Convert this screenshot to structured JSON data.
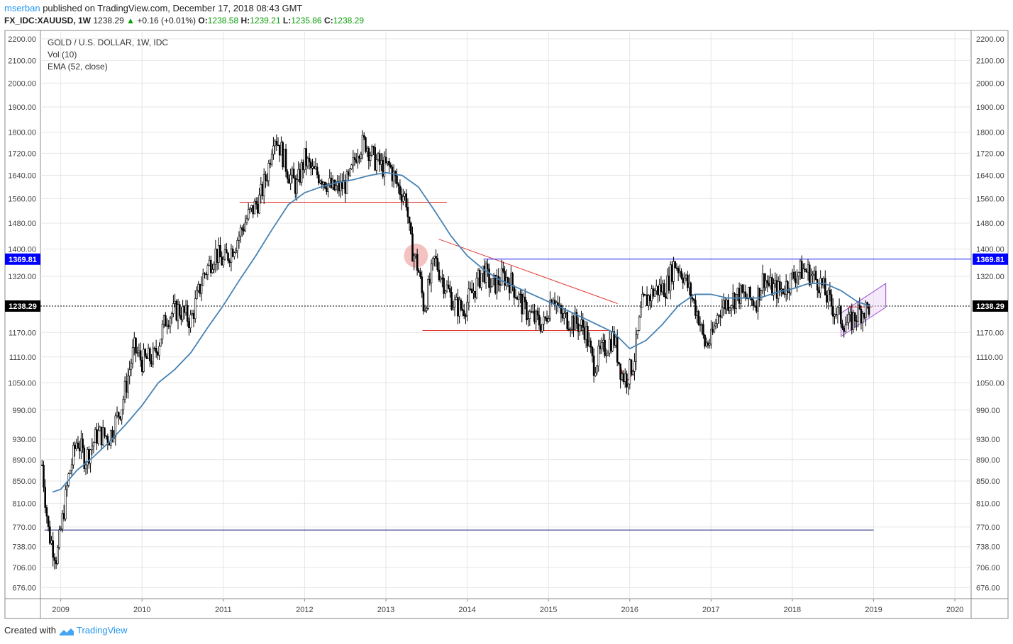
{
  "header": {
    "publisher": "mserban",
    "published_text": "published on TradingView.com, December 17, 2018 08:43 GMT",
    "symbol": "FX_IDC:XAUUSD, 1W",
    "last": "1238.29",
    "change": "+0.16 (+0.01%)",
    "o_label": "O:",
    "o_value": "1238.58",
    "h_label": "H:",
    "h_value": "1239.21",
    "l_label": "L:",
    "l_value": "1235.86",
    "c_label": "C:",
    "c_value": "1238.29"
  },
  "legend": {
    "title": "GOLD / U.S. DOLLAR, 1W, IDC",
    "vol": "Vol (10)",
    "ema": "EMA (52, close)"
  },
  "footer": {
    "created_with": "Created with",
    "brand": "TradingView"
  },
  "colors": {
    "candle": "#000000",
    "ema": "#4682b4",
    "red_line": "#e53935",
    "blue_line": "#1a1aff",
    "channel": "#9c4fd1",
    "current_price_bg": "#000000",
    "marker_label_bg": "#0000ff"
  },
  "chart_data": {
    "type": "line",
    "title": "GOLD / U.S. DOLLAR, 1W, IDC",
    "y_scale": "log",
    "ylim": [
      660,
      2240
    ],
    "xlim": [
      2008.75,
      2020.2
    ],
    "y_ticks": [
      2200,
      2100,
      2000,
      1900,
      1800,
      1720,
      1640,
      1560,
      1480,
      1400,
      1320,
      1170,
      1110,
      1050,
      990,
      930,
      890,
      850,
      810,
      770,
      738,
      706,
      676
    ],
    "x_ticks": [
      "2009",
      "2010",
      "2011",
      "2012",
      "2013",
      "2014",
      "2015",
      "2016",
      "2017",
      "2018",
      "2019",
      "2020"
    ],
    "price_labels": {
      "current": "1238.29",
      "marker": "1369.81"
    },
    "series": [
      {
        "name": "XAUUSD close",
        "x": [
          2008.77,
          2008.85,
          2008.95,
          2009.1,
          2009.2,
          2009.3,
          2009.45,
          2009.6,
          2009.75,
          2009.9,
          2010.0,
          2010.15,
          2010.3,
          2010.45,
          2010.6,
          2010.75,
          2010.9,
          2011.0,
          2011.15,
          2011.3,
          2011.45,
          2011.55,
          2011.62,
          2011.7,
          2011.8,
          2011.9,
          2012.0,
          2012.1,
          2012.2,
          2012.35,
          2012.45,
          2012.55,
          2012.65,
          2012.75,
          2012.85,
          2012.95,
          2013.05,
          2013.15,
          2013.25,
          2013.3,
          2013.4,
          2013.47,
          2013.6,
          2013.7,
          2013.85,
          2013.95,
          2014.1,
          2014.2,
          2014.3,
          2014.45,
          2014.55,
          2014.7,
          2014.85,
          2014.95,
          2015.05,
          2015.15,
          2015.3,
          2015.45,
          2015.55,
          2015.65,
          2015.8,
          2015.9,
          2015.96,
          2016.05,
          2016.15,
          2016.3,
          2016.45,
          2016.55,
          2016.65,
          2016.75,
          2016.85,
          2016.92,
          2017.0,
          2017.1,
          2017.2,
          2017.35,
          2017.45,
          2017.55,
          2017.65,
          2017.72,
          2017.85,
          2017.95,
          2018.05,
          2018.15,
          2018.25,
          2018.35,
          2018.45,
          2018.55,
          2018.62,
          2018.7,
          2018.8,
          2018.9,
          2018.96
        ],
        "values": [
          880,
          760,
          720,
          860,
          930,
          890,
          940,
          935,
          1000,
          1130,
          1100,
          1110,
          1210,
          1230,
          1200,
          1320,
          1390,
          1360,
          1420,
          1500,
          1560,
          1660,
          1800,
          1740,
          1650,
          1600,
          1700,
          1650,
          1640,
          1590,
          1600,
          1620,
          1740,
          1760,
          1700,
          1670,
          1670,
          1600,
          1560,
          1420,
          1340,
          1230,
          1370,
          1310,
          1240,
          1230,
          1290,
          1340,
          1290,
          1320,
          1300,
          1230,
          1200,
          1190,
          1280,
          1210,
          1200,
          1180,
          1090,
          1120,
          1160,
          1070,
          1060,
          1100,
          1240,
          1280,
          1290,
          1360,
          1330,
          1270,
          1210,
          1140,
          1150,
          1230,
          1250,
          1270,
          1260,
          1250,
          1320,
          1290,
          1280,
          1300,
          1330,
          1340,
          1320,
          1300,
          1250,
          1220,
          1200,
          1190,
          1220,
          1230,
          1238.29
        ]
      },
      {
        "name": "EMA (52, close)",
        "x": [
          2008.9,
          2009.0,
          2009.2,
          2009.4,
          2009.6,
          2009.8,
          2010.0,
          2010.2,
          2010.4,
          2010.6,
          2010.8,
          2011.0,
          2011.2,
          2011.4,
          2011.6,
          2011.8,
          2012.0,
          2012.2,
          2012.4,
          2012.6,
          2012.8,
          2013.0,
          2013.2,
          2013.4,
          2013.6,
          2013.8,
          2014.0,
          2014.2,
          2014.4,
          2014.6,
          2014.8,
          2015.0,
          2015.2,
          2015.4,
          2015.6,
          2015.8,
          2016.0,
          2016.2,
          2016.4,
          2016.6,
          2016.8,
          2017.0,
          2017.2,
          2017.4,
          2017.6,
          2017.8,
          2018.0,
          2018.2,
          2018.4,
          2018.6,
          2018.8,
          2018.96
        ],
        "values": [
          830,
          835,
          870,
          895,
          925,
          960,
          1000,
          1050,
          1080,
          1120,
          1180,
          1240,
          1310,
          1380,
          1460,
          1540,
          1580,
          1600,
          1615,
          1625,
          1640,
          1650,
          1640,
          1600,
          1520,
          1440,
          1380,
          1340,
          1310,
          1290,
          1270,
          1250,
          1230,
          1210,
          1190,
          1170,
          1130,
          1150,
          1190,
          1240,
          1270,
          1270,
          1260,
          1260,
          1260,
          1275,
          1285,
          1300,
          1300,
          1280,
          1250,
          1238
        ]
      }
    ],
    "annotations": [
      {
        "type": "horizontal",
        "color": "red",
        "y": 1548,
        "x_start": 2011.2,
        "x_end": 2013.75
      },
      {
        "type": "horizontal",
        "color": "red",
        "y": 1175,
        "x_start": 2013.45,
        "x_end": 2015.75
      },
      {
        "type": "trendline",
        "color": "red",
        "x": [
          2013.65,
          2015.85
        ],
        "y": [
          1430,
          1245
        ]
      },
      {
        "type": "horizontal",
        "color": "blue",
        "y": 1369.81,
        "x_start": 2014.2,
        "x_end": 2020.2
      },
      {
        "type": "horizontal",
        "color": "navy",
        "y": 765,
        "x_start": 2008.8,
        "x_end": 2019.0
      },
      {
        "type": "horizontal",
        "color": "dotted",
        "y": 1238.29,
        "x_start": 2008.75,
        "x_end": 2020.2
      },
      {
        "type": "channel",
        "color": "purple",
        "x": [
          2018.6,
          2019.15
        ],
        "y_lower": [
          1160,
          1235
        ],
        "y_upper": [
          1220,
          1300
        ]
      }
    ]
  }
}
